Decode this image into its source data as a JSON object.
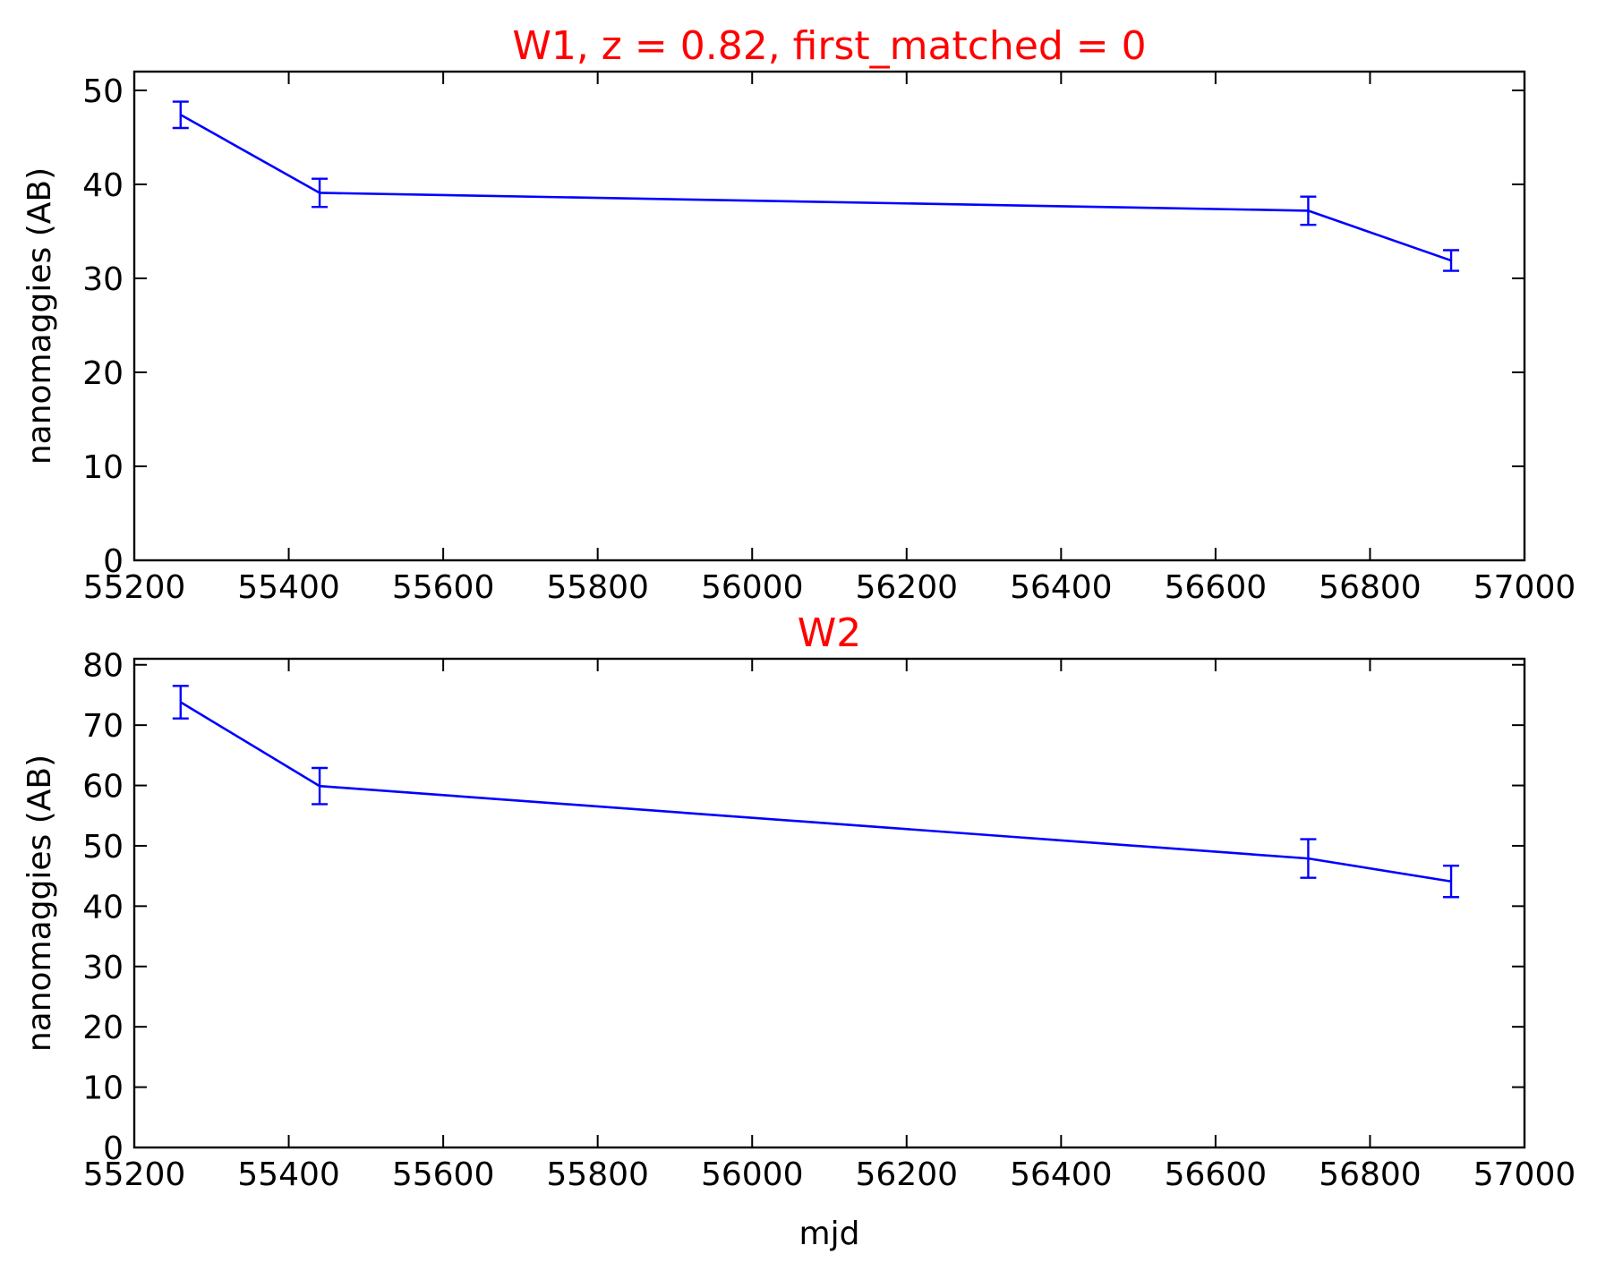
{
  "chart_data": [
    {
      "type": "line",
      "title": "W1, z = 0.82, first_matched = 0",
      "title_color": "#ff0000",
      "xlabel": "",
      "ylabel": "nanomaggies (AB)",
      "xlim": [
        55200,
        57000
      ],
      "ylim": [
        0,
        52
      ],
      "xticks": [
        55200,
        55400,
        55600,
        55800,
        56000,
        56200,
        56400,
        56600,
        56800,
        57000
      ],
      "yticks": [
        0,
        10,
        20,
        30,
        40,
        50
      ],
      "grid": false,
      "series": [
        {
          "color": "#0000ff",
          "x": [
            55260,
            55440,
            56720,
            56905
          ],
          "y": [
            47.4,
            39.1,
            37.2,
            31.9
          ],
          "yerr": [
            1.4,
            1.5,
            1.5,
            1.1
          ]
        }
      ]
    },
    {
      "type": "line",
      "title": "W2",
      "title_color": "#ff0000",
      "xlabel": "mjd",
      "ylabel": "nanomaggies (AB)",
      "xlim": [
        55200,
        57000
      ],
      "ylim": [
        0,
        81
      ],
      "xticks": [
        55200,
        55400,
        55600,
        55800,
        56000,
        56200,
        56400,
        56600,
        56800,
        57000
      ],
      "yticks": [
        0,
        10,
        20,
        30,
        40,
        50,
        60,
        70,
        80
      ],
      "grid": false,
      "series": [
        {
          "color": "#0000ff",
          "x": [
            55260,
            55440,
            56720,
            56905
          ],
          "y": [
            73.8,
            59.9,
            47.9,
            44.1
          ],
          "yerr": [
            2.7,
            3.0,
            3.2,
            2.6
          ]
        }
      ]
    }
  ]
}
